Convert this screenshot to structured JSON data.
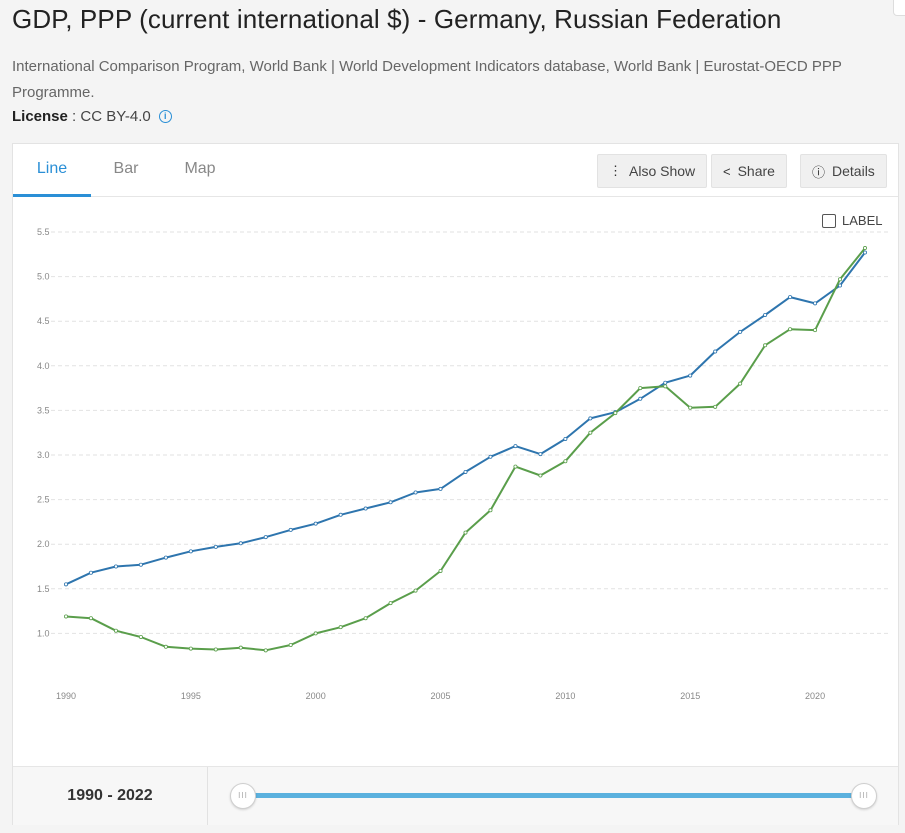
{
  "page": {
    "title": "GDP, PPP (current international $) - Germany, Russian Federation",
    "sources": "International Comparison Program, World Bank | World Development Indicators database, World Bank | Eurostat-OECD PPP Programme.",
    "license_label": "License",
    "license_sep": " : ",
    "license_value": "CC BY-4.0",
    "info_glyph": "i"
  },
  "tabs": [
    "Line",
    "Bar",
    "Map"
  ],
  "toolbar": {
    "also_show": "Also Show",
    "share": "Share",
    "details": "Details",
    "also_show_icon": "⋮",
    "share_icon": "<",
    "details_icon": "ⓘ"
  },
  "label_toggle": "LABEL",
  "footer": {
    "range": "1990 - 2022",
    "handle_glyph": "III"
  },
  "colors": {
    "germany": "#2e75ae",
    "russia": "#5a9e4b",
    "accent": "#2a8fd6"
  },
  "chart_data": {
    "type": "line",
    "title": "GDP, PPP (current international $) - Germany, Russian Federation",
    "xlabel": "",
    "ylabel": "",
    "x": [
      1990,
      1991,
      1992,
      1993,
      1994,
      1995,
      1996,
      1997,
      1998,
      1999,
      2000,
      2001,
      2002,
      2003,
      2004,
      2005,
      2006,
      2007,
      2008,
      2009,
      2010,
      2011,
      2012,
      2013,
      2014,
      2015,
      2016,
      2017,
      2018,
      2019,
      2020,
      2021,
      2022
    ],
    "x_ticks": [
      1990,
      1995,
      2000,
      2005,
      2010,
      2015,
      2020
    ],
    "y_ticks": [
      1.0,
      1.5,
      2.0,
      2.5,
      3.0,
      3.5,
      4.0,
      4.5,
      5.0,
      5.5
    ],
    "ylim": [
      0.5,
      5.5
    ],
    "xlim": [
      1990,
      2022
    ],
    "grid": true,
    "series": [
      {
        "name": "Germany",
        "values": [
          1.55,
          1.68,
          1.75,
          1.77,
          1.85,
          1.92,
          1.97,
          2.01,
          2.08,
          2.16,
          2.23,
          2.33,
          2.4,
          2.47,
          2.58,
          2.62,
          2.81,
          2.98,
          3.1,
          3.01,
          3.18,
          3.41,
          3.48,
          3.63,
          3.81,
          3.89,
          4.16,
          4.38,
          4.57,
          4.77,
          4.7,
          4.9,
          5.27
        ]
      },
      {
        "name": "Russian Federation",
        "values": [
          1.19,
          1.17,
          1.03,
          0.96,
          0.85,
          0.83,
          0.82,
          0.84,
          0.81,
          0.87,
          1.0,
          1.07,
          1.17,
          1.34,
          1.48,
          1.7,
          2.13,
          2.38,
          2.87,
          2.77,
          2.93,
          3.25,
          3.47,
          3.75,
          3.77,
          3.53,
          3.54,
          3.8,
          4.23,
          4.41,
          4.4,
          4.97,
          5.32
        ]
      }
    ]
  }
}
